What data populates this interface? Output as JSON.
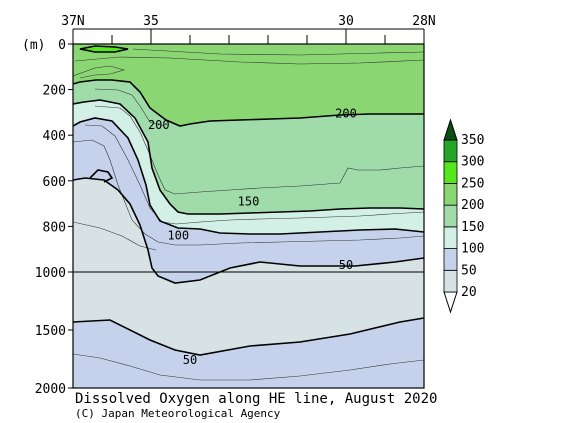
{
  "chart_data": {
    "type": "heatmap",
    "title": "Dissolved Oxygen along HE line, August 2020",
    "credit": "(C) Japan Meteorological Agency",
    "yunit": "(m)",
    "x_ticks": [
      {
        "lat": 37,
        "label": "37N"
      },
      {
        "lat": 35,
        "label": "35"
      },
      {
        "lat": 30,
        "label": "30"
      },
      {
        "lat": 28,
        "label": "28N"
      }
    ],
    "x_minor": [
      36,
      34,
      33,
      32,
      31,
      29
    ],
    "xlim": [
      37,
      28
    ],
    "y_ticks": [
      0,
      200,
      400,
      600,
      800,
      1000,
      1500,
      2000
    ],
    "y_tick_labels": [
      "0",
      "200",
      "400",
      "600",
      "800",
      "1000",
      "1500",
      "2000"
    ],
    "ylim": [
      0,
      2000
    ],
    "y_scale_break": 1000,
    "contour_labels": [
      {
        "text": "200",
        "lat": 34.8,
        "depth": 355
      },
      {
        "text": "200",
        "lat": 30.0,
        "depth": 305
      },
      {
        "text": "150",
        "lat": 32.5,
        "depth": 690
      },
      {
        "text": "100",
        "lat": 34.3,
        "depth": 840
      },
      {
        "text": "50",
        "lat": 30.0,
        "depth": 970
      },
      {
        "text": "50",
        "lat": 34.0,
        "depth": 1760
      }
    ],
    "colorbar": {
      "levels": [
        20,
        50,
        100,
        150,
        200,
        250,
        300,
        350
      ],
      "labels": [
        "20",
        "50",
        "100",
        "150",
        "200",
        "250",
        "300",
        "350"
      ],
      "colors": [
        "#ffffff",
        "#d6e2e4",
        "#c6d2ec",
        "#d2f0e6",
        "#9fdcaa",
        "#8ad672",
        "#55e61c",
        "#26a626",
        "#0b4d12"
      ]
    }
  }
}
